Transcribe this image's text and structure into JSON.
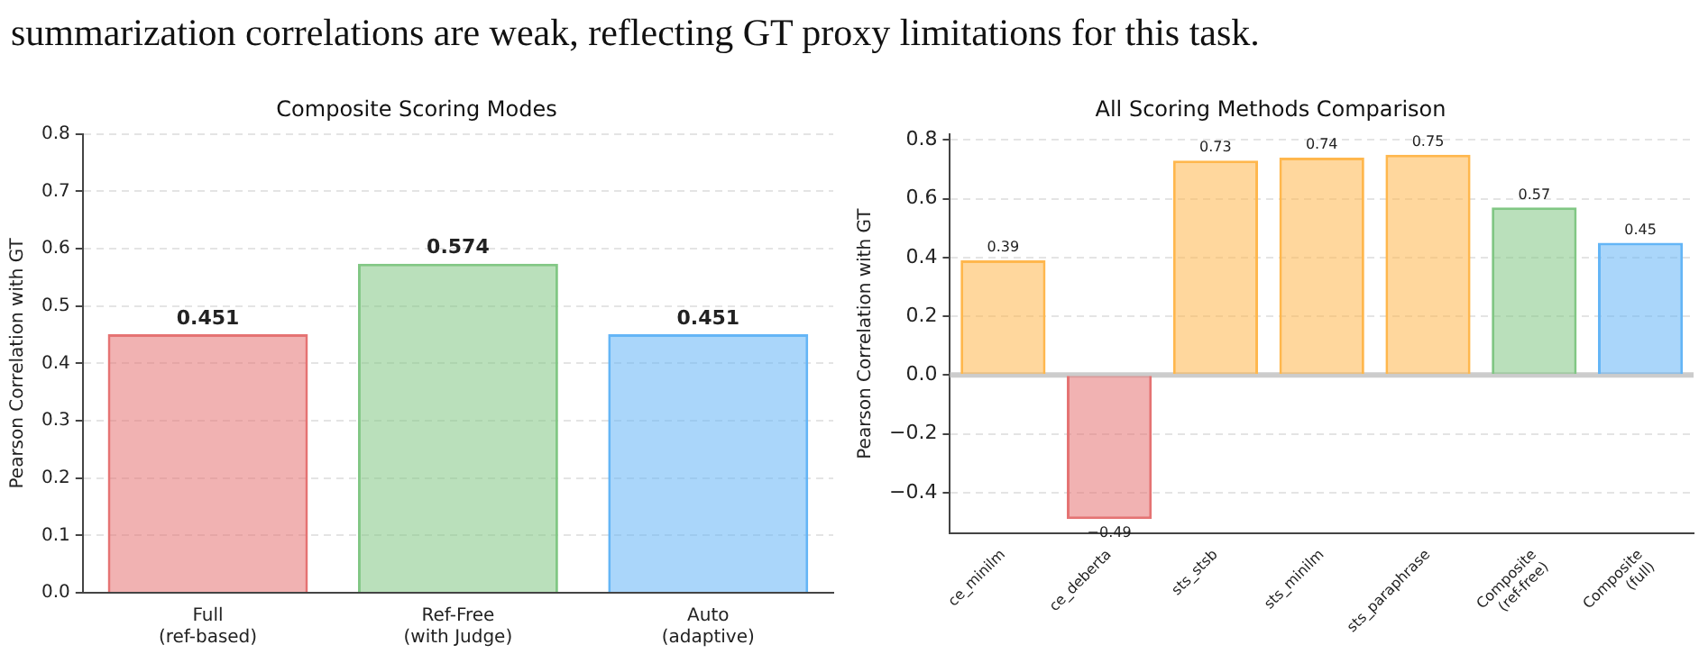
{
  "chart_data": [
    {
      "type": "bar",
      "title": "Composite Scoring Modes",
      "ylabel": "Pearson Correlation with GT",
      "annotations": [
        "summarization correlations are weak, reflecting GT proxy limitations for this task."
      ],
      "categories": [
        "Full\n(ref-based)",
        "Ref-Free\n(with Judge)",
        "Auto\n(adaptive)"
      ],
      "values": [
        0.451,
        0.574,
        0.451
      ],
      "colors": [
        "#e57373",
        "#81c784",
        "#64b5f6"
      ],
      "ylim": [
        0,
        0.8
      ],
      "yticks": [
        {
          "value": 0,
          "label": "0.0"
        },
        0.1,
        0.2,
        0.3,
        0.4,
        0.5,
        0.6,
        0.7,
        0.8
      ],
      "grid": "y",
      "data_labels": true
    },
    {
      "type": "bar",
      "title": "All Scoring Methods Comparison",
      "ylabel": "Pearson Correlation with GT",
      "categories": [
        "ce_minilm",
        "ce_deberta",
        "sts_stsb",
        "sts_minilm",
        "sts_paraphrase",
        "Composite\n(ref-free)",
        "Composite\n(full)"
      ],
      "values": [
        0.39,
        -0.49,
        0.73,
        0.74,
        0.75,
        0.57,
        0.45
      ],
      "colors": [
        "#ffb74d",
        "#e57373",
        "#ffb74d",
        "#ffb74d",
        "#ffb74d",
        "#81c784",
        "#64b5f6"
      ],
      "ylim": [
        -0.54,
        0.82
      ],
      "yticks": [
        -0.4,
        -0.2,
        {
          "value": 0,
          "label": "0.0"
        },
        0.2,
        0.4,
        0.6,
        0.8
      ],
      "grid": "y",
      "data_labels": true,
      "ref_lines": [
        {
          "axis": "y",
          "value": 0,
          "color": "#cccccc"
        }
      ]
    }
  ]
}
